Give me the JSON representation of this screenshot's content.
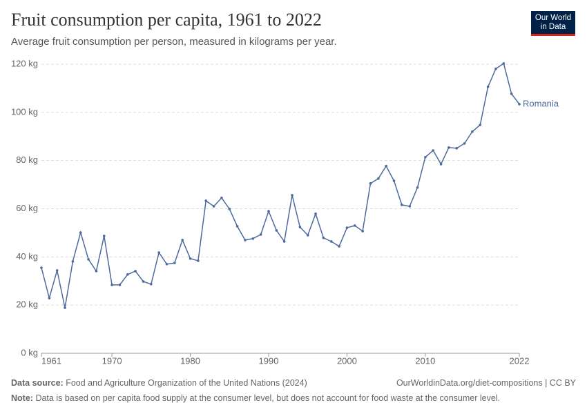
{
  "chart_data": {
    "type": "line",
    "title": "Fruit consumption per capita, 1961 to 2022",
    "subtitle": "Average fruit consumption per person, measured in kilograms per year.",
    "logo": [
      "Our World",
      "in Data"
    ],
    "source_label": "Data source:",
    "source": "Food and Agriculture Organization of the United Nations (2024)",
    "url": "OurWorldinData.org/diet-compositions | CC BY",
    "note_label": "Note:",
    "note": "Data is based on per capita food supply at the consumer level, but does not account for food waste at the consumer level.",
    "x": [
      1961,
      1962,
      1963,
      1964,
      1965,
      1966,
      1967,
      1968,
      1969,
      1970,
      1971,
      1972,
      1973,
      1974,
      1975,
      1976,
      1977,
      1978,
      1979,
      1980,
      1981,
      1982,
      1983,
      1984,
      1985,
      1986,
      1987,
      1988,
      1989,
      1990,
      1991,
      1992,
      1993,
      1994,
      1995,
      1996,
      1997,
      1998,
      1999,
      2000,
      2001,
      2002,
      2003,
      2004,
      2005,
      2006,
      2007,
      2008,
      2009,
      2010,
      2011,
      2012,
      2013,
      2014,
      2015,
      2016,
      2017,
      2018,
      2019,
      2020,
      2021,
      2022
    ],
    "series": [
      {
        "name": "Romania",
        "color": "#4c6a9c",
        "values": [
          35.5,
          22.9,
          34.4,
          18.9,
          38.1,
          50.1,
          39,
          34.1,
          48.7,
          28.4,
          28.4,
          32.7,
          34.1,
          29.8,
          28.7,
          41.8,
          37,
          37.5,
          47,
          39.3,
          38.4,
          63.3,
          61,
          64.5,
          59.9,
          52.7,
          47,
          47.6,
          49.3,
          59,
          51,
          46.4,
          65.6,
          52.4,
          49,
          57.9,
          47.9,
          46.4,
          44.4,
          52.1,
          53,
          50.7,
          70.5,
          72.5,
          77.7,
          71.6,
          61.6,
          61,
          68.8,
          81.4,
          84.2,
          78.5,
          85.4,
          85.1,
          87.1,
          92,
          94.8,
          110.6,
          118.1,
          120.3,
          107.7,
          103.4
        ]
      }
    ],
    "xlim": [
      1961,
      2022
    ],
    "xticks": [
      1961,
      1970,
      1980,
      1990,
      2000,
      2010,
      2022
    ],
    "ylim": [
      0,
      120
    ],
    "yticks": [
      {
        "value": 0,
        "label": "0 kg"
      },
      {
        "value": 20,
        "label": "20 kg"
      },
      {
        "value": 40,
        "label": "40 kg"
      },
      {
        "value": 60,
        "label": "60 kg"
      },
      {
        "value": 80,
        "label": "80 kg"
      },
      {
        "value": 100,
        "label": "100 kg"
      },
      {
        "value": 120,
        "label": "120 kg"
      }
    ],
    "grid": true
  }
}
